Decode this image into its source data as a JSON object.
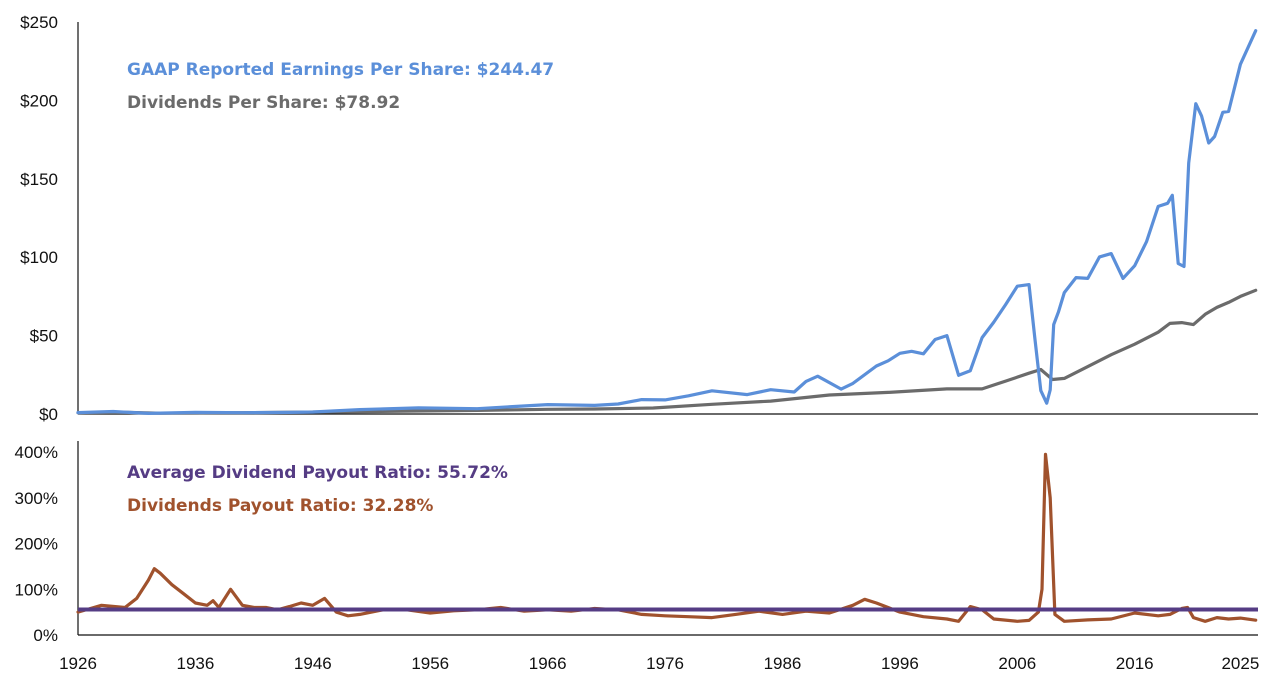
{
  "colors": {
    "eps": "#5b8fd9",
    "dividends": "#6b6b6b",
    "payout": "#a0522d",
    "average": "#553c84",
    "axis": "#111111"
  },
  "chart_data": [
    {
      "type": "line",
      "title": "",
      "xlabel": "",
      "ylabel": "",
      "xlim": [
        1926,
        2026.5
      ],
      "ylim": [
        0,
        250
      ],
      "grid": false,
      "y_ticks": [
        "$250",
        "$200",
        "$150",
        "$100",
        "$50",
        "$0"
      ],
      "y_tick_values": [
        250,
        200,
        150,
        100,
        50,
        0
      ],
      "annotations": [
        "GAAP Reported Earnings Per Share: $244.47",
        "Dividends Per Share: $78.92"
      ],
      "series": [
        {
          "key": "eps",
          "x": [
            1926,
            1929,
            1932,
            1936,
            1940,
            1944,
            1946,
            1950,
            1955,
            1960,
            1963,
            1966,
            1970,
            1972,
            1974,
            1976,
            1978,
            1980,
            1983,
            1985,
            1987,
            1988,
            1989,
            1991,
            1992,
            1994,
            1995,
            1996,
            1997,
            1998,
            1999,
            2000,
            2001,
            2002,
            2003,
            2004,
            2005,
            2006,
            2007,
            2007.5,
            2008,
            2008.5,
            2008.8,
            2009.1,
            2009.5,
            2010,
            2011,
            2012,
            2013,
            2014,
            2015,
            2016,
            2017,
            2018,
            2018.8,
            2019.2,
            2019.7,
            2020.2,
            2020.6,
            2021.2,
            2021.7,
            2022.3,
            2022.8,
            2023.5,
            2024,
            2025,
            2026.3
          ],
          "values": [
            0.9,
            1.6,
            0.4,
            1.0,
            0.8,
            1.0,
            1.3,
            2.8,
            3.9,
            3.4,
            4.7,
            6.0,
            5.5,
            6.4,
            9.2,
            9.0,
            11.6,
            14.8,
            12.4,
            15.5,
            14.0,
            20.8,
            24.1,
            15.9,
            19.5,
            30.6,
            33.9,
            38.7,
            40.0,
            38.4,
            47.5,
            50.0,
            24.7,
            27.6,
            48.7,
            58.6,
            69.8,
            81.5,
            82.5,
            48.0,
            14.9,
            6.9,
            15.4,
            57.0,
            65.0,
            77.4,
            87.0,
            86.5,
            100.2,
            102.3,
            86.5,
            94.6,
            109.9,
            132.4,
            134.4,
            139.5,
            96.0,
            94.1,
            160.0,
            197.9,
            190.0,
            172.8,
            177.0,
            192.4,
            193.0,
            223.0,
            244.47
          ]
        },
        {
          "key": "dividends",
          "x": [
            1926,
            1930,
            1933,
            1940,
            1950,
            1960,
            1966,
            1970,
            1975,
            1980,
            1985,
            1990,
            1995,
            2000,
            2003,
            2005,
            2007,
            2008,
            2009,
            2010,
            2012,
            2014,
            2016,
            2018,
            2019,
            2020,
            2021,
            2022,
            2023,
            2024,
            2025,
            2026.3
          ],
          "values": [
            0.8,
            1.1,
            0.5,
            0.8,
            1.5,
            2.3,
            3.0,
            3.2,
            3.8,
            6.2,
            8.2,
            12.1,
            13.8,
            16.0,
            16.0,
            21.0,
            26.0,
            28.4,
            22.0,
            22.7,
            30.2,
            37.8,
            44.5,
            52.2,
            57.8,
            58.3,
            57.0,
            63.6,
            68.0,
            71.2,
            75.0,
            78.92
          ]
        }
      ]
    },
    {
      "type": "line",
      "title": "",
      "xlabel": "",
      "ylabel": "",
      "xlim": [
        1926,
        2026.5
      ],
      "ylim": [
        0,
        400
      ],
      "grid": false,
      "x_ticks": [
        "1926",
        "1936",
        "1946",
        "1956",
        "1966",
        "1976",
        "1986",
        "1996",
        "2006",
        "2016",
        "2025"
      ],
      "x_tick_values": [
        1926,
        1936,
        1946,
        1956,
        1966,
        1976,
        1986,
        1996,
        2006,
        2016,
        2025
      ],
      "y_ticks": [
        "400%",
        "300%",
        "200%",
        "100%",
        "0%"
      ],
      "y_tick_values": [
        400,
        300,
        200,
        100,
        0
      ],
      "annotations": [
        "Average Dividend Payout Ratio: 55.72%",
        "Dividends Payout Ratio: 32.28%"
      ],
      "series": [
        {
          "key": "average",
          "x": [
            1926,
            2026.5
          ],
          "values": [
            55.72,
            55.72
          ]
        },
        {
          "key": "payout",
          "x": [
            1926,
            1928,
            1930,
            1931,
            1932,
            1932.5,
            1933,
            1934,
            1935,
            1936,
            1937,
            1937.5,
            1938,
            1939,
            1940,
            1941,
            1942,
            1943,
            1944,
            1945,
            1946,
            1947,
            1948,
            1949,
            1950,
            1952,
            1954,
            1956,
            1958,
            1960,
            1962,
            1964,
            1966,
            1968,
            1970,
            1972,
            1974,
            1976,
            1978,
            1980,
            1982,
            1984,
            1986,
            1988,
            1990,
            1992,
            1993,
            1994,
            1996,
            1998,
            2000,
            2001,
            2002,
            2003,
            2004,
            2006,
            2007,
            2007.8,
            2008.1,
            2008.4,
            2008.8,
            2009.2,
            2010,
            2012,
            2014,
            2016,
            2018,
            2019,
            2020,
            2020.5,
            2021,
            2022,
            2023,
            2024,
            2025,
            2026.3
          ],
          "values": [
            50,
            65,
            60,
            80,
            120,
            145,
            135,
            110,
            90,
            70,
            65,
            75,
            60,
            100,
            65,
            60,
            60,
            55,
            62,
            70,
            65,
            80,
            50,
            42,
            45,
            55,
            55,
            48,
            53,
            55,
            60,
            52,
            55,
            52,
            58,
            55,
            45,
            42,
            40,
            38,
            45,
            52,
            45,
            52,
            48,
            65,
            78,
            70,
            50,
            40,
            35,
            30,
            62,
            55,
            35,
            30,
            32,
            50,
            100,
            395,
            300,
            45,
            30,
            33,
            35,
            48,
            42,
            45,
            58,
            60,
            38,
            30,
            38,
            35,
            37,
            32.28
          ]
        }
      ]
    }
  ]
}
